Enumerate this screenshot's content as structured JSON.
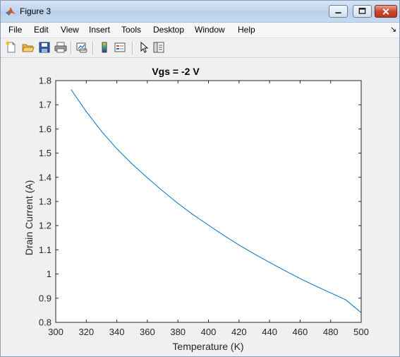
{
  "window": {
    "title": "Figure 3"
  },
  "menu": [
    "File",
    "Edit",
    "View",
    "Insert",
    "Tools",
    "Desktop",
    "Window",
    "Help"
  ],
  "toolbar_icons": [
    "new-figure-icon",
    "open-file-icon",
    "save-icon",
    "print-icon",
    "link-plot-icon",
    "colorbar-icon",
    "legend-icon",
    "pointer-icon",
    "property-editor-icon"
  ],
  "colors": {
    "line": "#0072bd",
    "axes_bg": "#ffffff",
    "figure_bg": "#f0f0f0"
  },
  "chart_data": {
    "type": "line",
    "title": "Vgs = -2 V",
    "xlabel": "Temperature (K)",
    "ylabel": "Drain Current (A)",
    "xlim": [
      300,
      500
    ],
    "ylim": [
      0.8,
      1.8
    ],
    "xticks": [
      300,
      320,
      340,
      360,
      380,
      400,
      420,
      440,
      460,
      480,
      500
    ],
    "yticks": [
      0.8,
      0.9,
      1.0,
      1.1,
      1.2,
      1.3,
      1.4,
      1.5,
      1.6,
      1.7,
      1.8
    ],
    "xtick_labels": [
      "300",
      "320",
      "340",
      "360",
      "380",
      "400",
      "420",
      "440",
      "460",
      "480",
      "500"
    ],
    "ytick_labels": [
      "0.8",
      "0.9",
      "1",
      "1.1",
      "1.2",
      "1.3",
      "1.4",
      "1.5",
      "1.6",
      "1.7",
      "1.8"
    ],
    "grid": false,
    "series": [
      {
        "x": [
          310,
          320,
          330,
          340,
          350,
          360,
          370,
          380,
          390,
          400,
          410,
          420,
          430,
          440,
          450,
          460,
          470,
          480,
          490,
          500
        ],
        "y": [
          1.763,
          1.672,
          1.59,
          1.518,
          1.455,
          1.398,
          1.344,
          1.292,
          1.245,
          1.202,
          1.16,
          1.12,
          1.083,
          1.048,
          1.014,
          0.981,
          0.951,
          0.922,
          0.893,
          0.84
        ]
      }
    ]
  }
}
